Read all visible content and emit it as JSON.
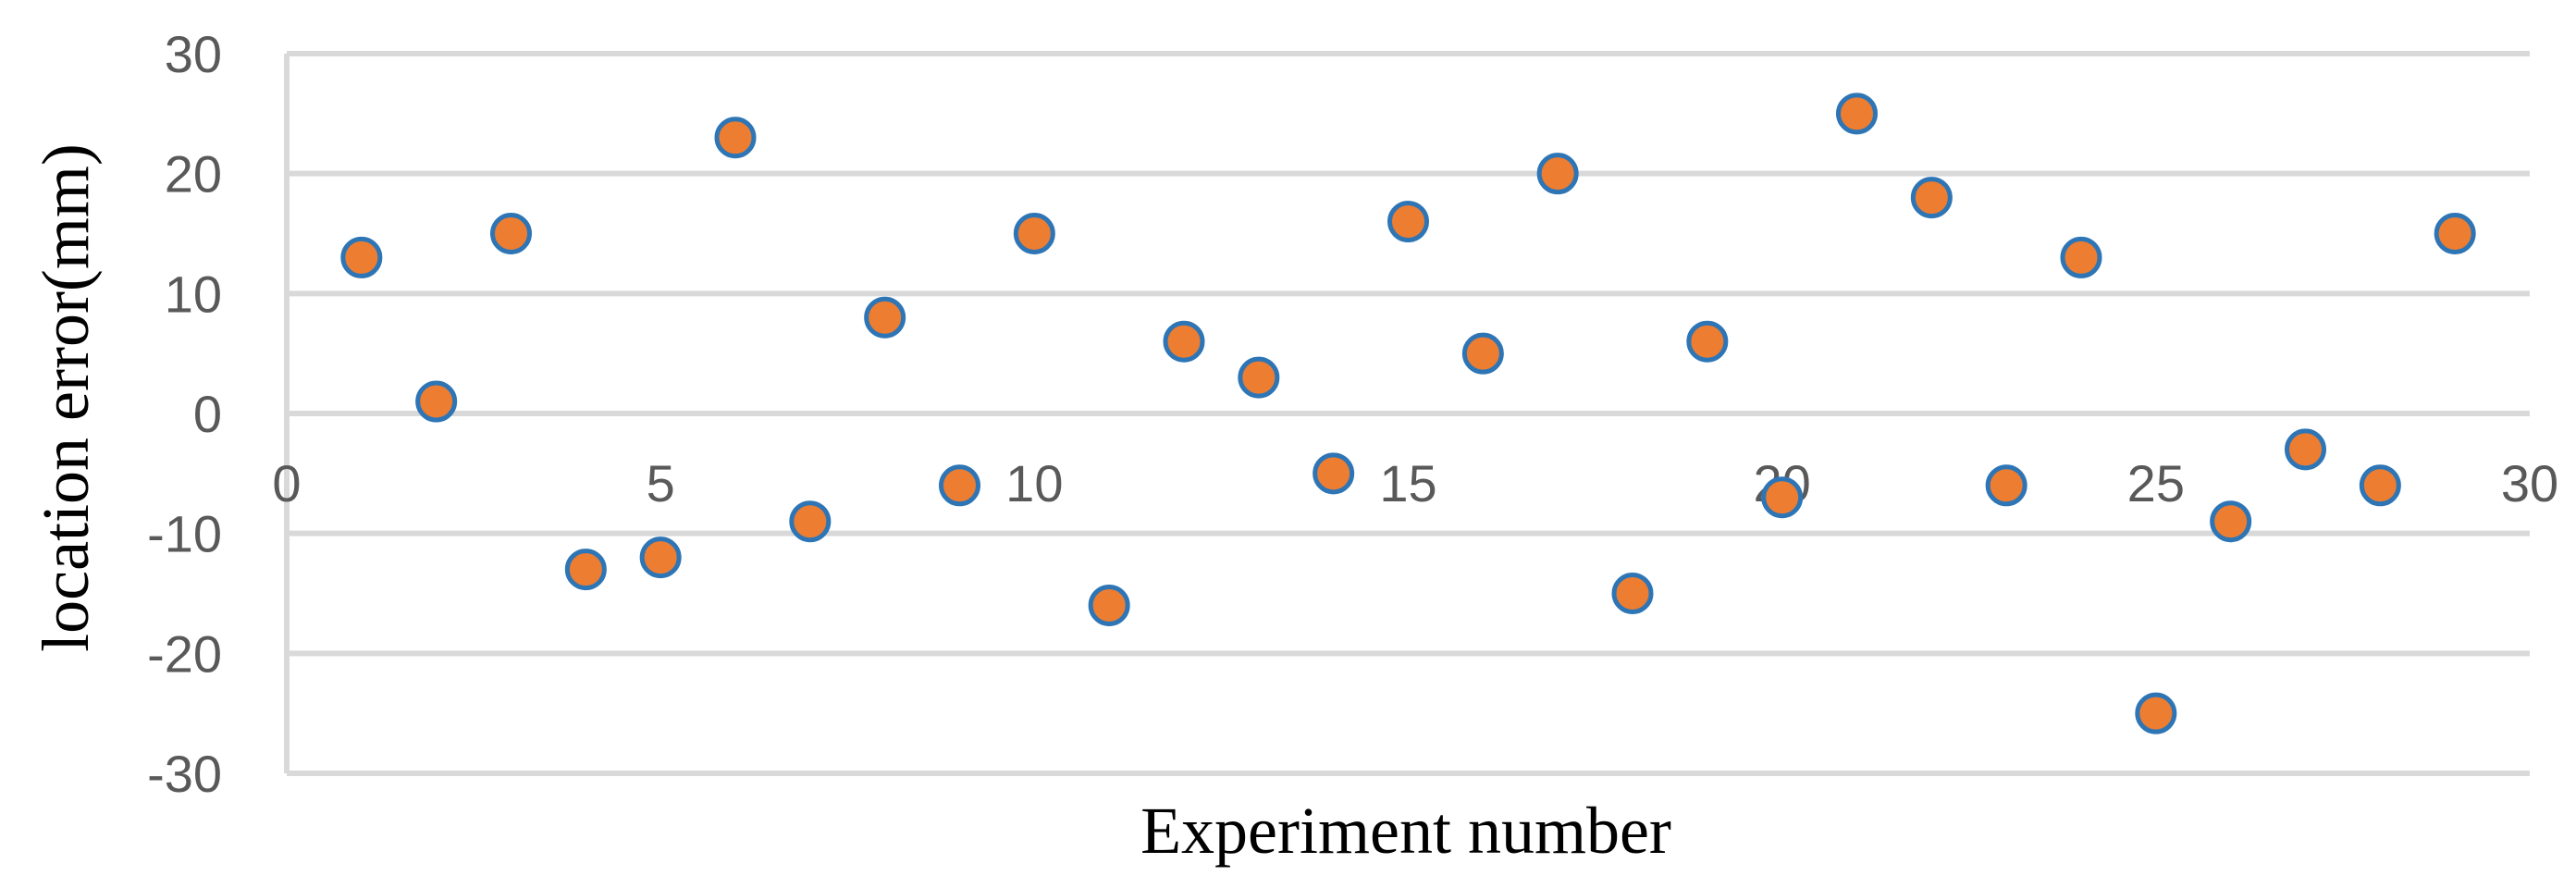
{
  "chart_data": {
    "type": "scatter",
    "title": "",
    "xlabel": "Experiment number",
    "ylabel": "location error(mm)",
    "xlim": [
      0,
      30
    ],
    "ylim": [
      -30,
      30
    ],
    "xticks": [
      0,
      5,
      10,
      15,
      20,
      25,
      30
    ],
    "yticks": [
      -30,
      -20,
      -10,
      0,
      10,
      20,
      30
    ],
    "grid": {
      "horizontal": true,
      "vertical": false
    },
    "legend": "none",
    "colors": {
      "marker_fill": "#ED7D31",
      "marker_stroke": "#2E75B6",
      "grid": "#D9D9D9",
      "tick_text": "#595959",
      "axis_title": "#000000"
    },
    "series": [
      {
        "x": [
          1,
          2,
          3,
          4,
          5,
          6,
          7,
          8,
          9,
          10,
          11,
          12,
          13,
          14,
          15,
          16,
          17,
          18,
          19,
          20,
          21,
          22,
          23,
          24,
          25,
          26,
          27,
          28,
          29
        ],
        "y": [
          13,
          1,
          15,
          -13,
          -12,
          23,
          -9,
          8,
          -6,
          15,
          -16,
          6,
          3,
          -5,
          16,
          5,
          20,
          -15,
          6,
          -7,
          25,
          18,
          -6,
          13,
          -25,
          -9,
          -3,
          -6,
          15
        ]
      }
    ]
  }
}
